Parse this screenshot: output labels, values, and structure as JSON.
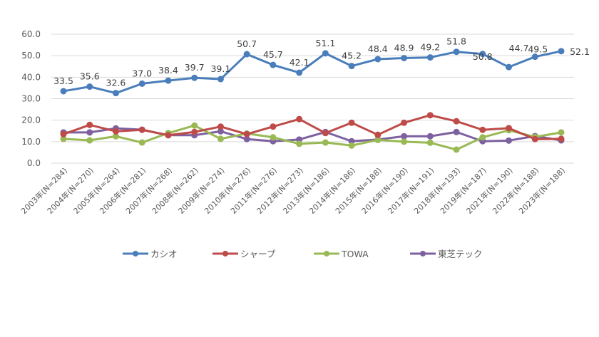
{
  "chart_data": {
    "type": "line",
    "title": "",
    "xlabel": "",
    "ylabel": "",
    "ylim": [
      0,
      60
    ],
    "yticks": [
      "0.0",
      "10.0",
      "20.0",
      "30.0",
      "40.0",
      "50.0",
      "60.0"
    ],
    "grid": true,
    "legend_position": "bottom",
    "categories": [
      "2003年(N=284)",
      "2004年(N=270)",
      "2005年(N=264)",
      "2006年(N=281)",
      "2007年(N=268)",
      "2008年(N=262)",
      "2009年(N=274)",
      "2010年(N=276)",
      "2011年(N=276)",
      "2012年(N=273)",
      "2013年(N=186)",
      "2014年(N=186)",
      "2015年(N=188)",
      "2016年(N=190)",
      "2017年(N=191)",
      "2018年(N=193)",
      "2019年(N=187)",
      "2021年(N=190)",
      "2022年(N=188)",
      "2023年(N=188)"
    ],
    "series": [
      {
        "name": "カシオ",
        "color": "#4a7ebb",
        "values": [
          33.5,
          35.6,
          32.6,
          37.0,
          38.4,
          39.7,
          39.1,
          50.7,
          45.7,
          42.1,
          51.1,
          45.2,
          48.4,
          48.9,
          49.2,
          51.8,
          50.8,
          44.7,
          49.5,
          52.1
        ],
        "data_labels": [
          "33.5",
          "35.6",
          "32.6",
          "37.0",
          "38.4",
          "39.7",
          "39.1",
          "50.7",
          "45.7",
          "42.1",
          "51.1",
          "45.2",
          "48.4",
          "48.9",
          "49.2",
          "51.8",
          "50.8",
          "44.7",
          "49.5",
          "52.1"
        ]
      },
      {
        "name": "シャープ",
        "color": "#be4b48",
        "values": [
          13.5,
          17.8,
          14.8,
          15.5,
          13.0,
          14.5,
          17.0,
          13.5,
          17.0,
          20.5,
          14.0,
          18.8,
          13.2,
          18.8,
          22.3,
          19.5,
          15.5,
          16.3,
          11.2,
          11.3
        ]
      },
      {
        "name": "TOWA",
        "color": "#98b954",
        "values": [
          11.3,
          10.6,
          12.5,
          9.6,
          14.0,
          17.5,
          11.3,
          13.8,
          12.0,
          9.0,
          9.6,
          8.2,
          10.8,
          10.0,
          9.5,
          6.3,
          12.0,
          15.3,
          12.2,
          14.3
        ]
      },
      {
        "name": "東芝テック",
        "color": "#7d60a0",
        "values": [
          14.3,
          14.3,
          16.2,
          15.6,
          13.0,
          13.0,
          14.8,
          11.2,
          10.2,
          11.0,
          14.5,
          10.2,
          11.0,
          12.5,
          12.5,
          14.5,
          10.2,
          10.5,
          12.6,
          10.6
        ]
      }
    ]
  }
}
